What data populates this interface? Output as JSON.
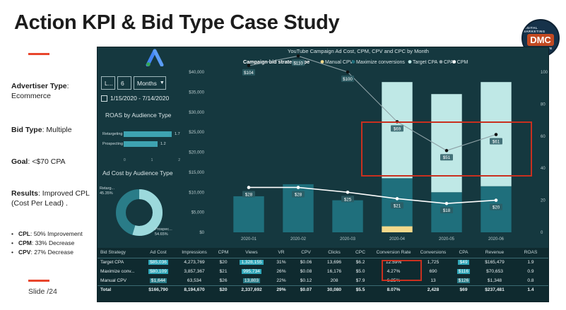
{
  "slide": {
    "title": "Action KPI & Bid Type Case Study",
    "slide_number": "Slide  /24"
  },
  "brand": {
    "top": "DIGITAL MARKETING",
    "mid": "DMC",
    "bottom": "COLLECTIVE"
  },
  "info": {
    "advertiser_label": "Advertiser Type",
    "advertiser_value": "Ecommerce",
    "bid_label": "Bid Type",
    "bid_value": "Multiple",
    "goal_label": "Goal",
    "goal_value": "<$70 CPA",
    "results_label": "Results",
    "results_value": "Improved CPL",
    "results_value2": "(Cost Per Lead) .",
    "bullets": [
      {
        "label": "CPL",
        "text": ": 50% Improvement"
      },
      {
        "label": "CPM",
        "text": ": 33% Decrease"
      },
      {
        "label": "CPV",
        "text": ": 27% Decrease"
      }
    ]
  },
  "filters": {
    "f1": "L...",
    "f2": "6",
    "f3": "Months",
    "date_range": "1/15/2020 - 7/14/2020"
  },
  "roas_panel": {
    "title": "ROAS by Audience Type",
    "rows": [
      {
        "label": "Retargeting",
        "value": 1.7,
        "display": "1.7"
      },
      {
        "label": "Prospecting",
        "value": 1.2,
        "display": "1.2"
      }
    ],
    "axis": [
      "0",
      "1",
      "2"
    ]
  },
  "adcost_panel": {
    "title": "Ad Cost by Audience Type",
    "slices": [
      {
        "label": "Retarg...",
        "pct_label": "45.35%",
        "value": 45.35
      },
      {
        "label": "Prospec...",
        "pct_label": "54.65%",
        "value": 54.65
      }
    ]
  },
  "chart_data": {
    "type": "bar",
    "title": "YouTube Campaign Ad Cost, CPM, CPV and CPC by Month",
    "legend_title": "Campaign bid strategy type",
    "legend": [
      {
        "name": "Manual CPV",
        "color": "#f3d98b"
      },
      {
        "name": "Maximize conversions",
        "color": "#1f6f7c"
      },
      {
        "name": "Target CPA",
        "color": "#bfe8e6"
      },
      {
        "name": "CPA",
        "color": "#8ea1a6"
      },
      {
        "name": "CPM",
        "color": "#ffffff"
      }
    ],
    "categories": [
      "2020-01",
      "2020-02",
      "2020-03",
      "2020-04",
      "2020-05",
      "2020-06"
    ],
    "y_left_ticks": [
      "$40,000",
      "$35,000",
      "$30,000",
      "$25,000",
      "$20,000",
      "$15,000",
      "$10,000",
      "$5,000",
      "$0"
    ],
    "y_right_ticks": [
      "100",
      "80",
      "60",
      "40",
      "20",
      "0"
    ],
    "ylim_left": [
      0,
      40000
    ],
    "ylim_right": [
      0,
      100
    ],
    "series": [
      {
        "name": "Manual CPV",
        "values": [
          0,
          0,
          0,
          1500,
          0,
          0
        ]
      },
      {
        "name": "Maximize conversions",
        "values": [
          9000,
          12000,
          8000,
          12000,
          10000,
          11500
        ]
      },
      {
        "name": "Target CPA",
        "values": [
          0,
          0,
          0,
          24000,
          24500,
          26000
        ]
      }
    ],
    "lines": [
      {
        "name": "CPA",
        "values": [
          104,
          110,
          100,
          69,
          51,
          61
        ],
        "labels": [
          "$104",
          "$110",
          "$100",
          "$69",
          "$51",
          "$61"
        ]
      },
      {
        "name": "CPM",
        "values": [
          28,
          28,
          25,
          21,
          18,
          20
        ],
        "labels": [
          "$28",
          "$28",
          "$25",
          "$21",
          "$18",
          "$20"
        ]
      }
    ]
  },
  "table": {
    "headers": [
      "Bid Strategy",
      "Ad Cost",
      "Impressions",
      "CPM",
      "Views",
      "VR",
      "CPV",
      "Clicks",
      "CPC",
      "Conversion Rate",
      "Conversions",
      "CPA",
      "Revenue",
      "ROAS"
    ],
    "rows": [
      [
        "Target CPA",
        "$85,036",
        "4,273,769",
        "$20",
        "1,328,155",
        "31%",
        "$0.06",
        "13,696",
        "$6.2",
        "12.59%",
        "1,725",
        "$49",
        "$165,479",
        "1.9"
      ],
      [
        "Maximize conv...",
        "$80,109",
        "3,857,367",
        "$21",
        "995,734",
        "26%",
        "$0.08",
        "16,176",
        "$5.0",
        "4.27%",
        "690",
        "$116",
        "$70,653",
        "0.9"
      ],
      [
        "Manual CPV",
        "$1,644",
        "63,534",
        "$26",
        "13,803",
        "22%",
        "$0.12",
        "208",
        "$7.9",
        "6.25%",
        "13",
        "$126",
        "$1,348",
        "0.8"
      ],
      [
        "Total",
        "$166,790",
        "8,194,670",
        "$20",
        "2,337,692",
        "29%",
        "$0.07",
        "30,080",
        "$5.5",
        "8.07%",
        "2,428",
        "$69",
        "$237,481",
        "1.4"
      ]
    ]
  }
}
